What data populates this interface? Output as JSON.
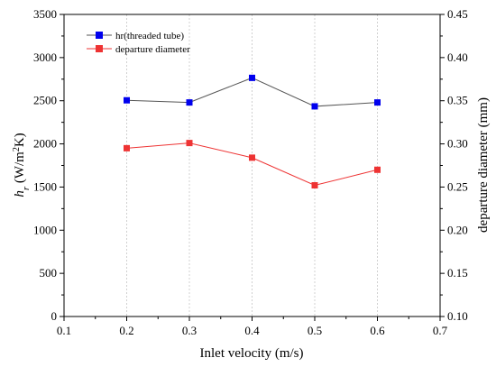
{
  "chart_data": {
    "type": "line",
    "x": [
      0.2,
      0.3,
      0.4,
      0.5,
      0.6
    ],
    "xlim": [
      0.1,
      0.7
    ],
    "xticks": [
      "0.1",
      "0.2",
      "0.3",
      "0.4",
      "0.5",
      "0.6",
      "0.7"
    ],
    "xlabel": "Inlet velocity (m/s)",
    "ylabel_left": {
      "base": "h",
      "sub": "r",
      "unit_open": " (W/m",
      "sup": "2",
      "unit_close": "K)"
    },
    "ylim_left": [
      0,
      3500
    ],
    "yticks_left": [
      "0",
      "500",
      "1000",
      "1500",
      "2000",
      "2500",
      "3000",
      "3500"
    ],
    "ylabel_right": "departure diameter (mm)",
    "ylim_right": [
      0.1,
      0.45
    ],
    "yticks_right": [
      "0.10",
      "0.15",
      "0.20",
      "0.25",
      "0.30",
      "0.35",
      "0.40",
      "0.45"
    ],
    "grid": "vertical dashed",
    "legend_position": "top-left",
    "series": [
      {
        "name": "hr(threaded tube)",
        "axis": "left",
        "marker_color": "#0000ee",
        "line_color": "#555555",
        "values": [
          2505,
          2480,
          2765,
          2435,
          2480
        ]
      },
      {
        "name": "departure diameter",
        "axis": "right",
        "marker_color": "#ee3333",
        "line_color": "#ee3333",
        "values": [
          0.295,
          0.301,
          0.284,
          0.252,
          0.27
        ]
      }
    ]
  }
}
